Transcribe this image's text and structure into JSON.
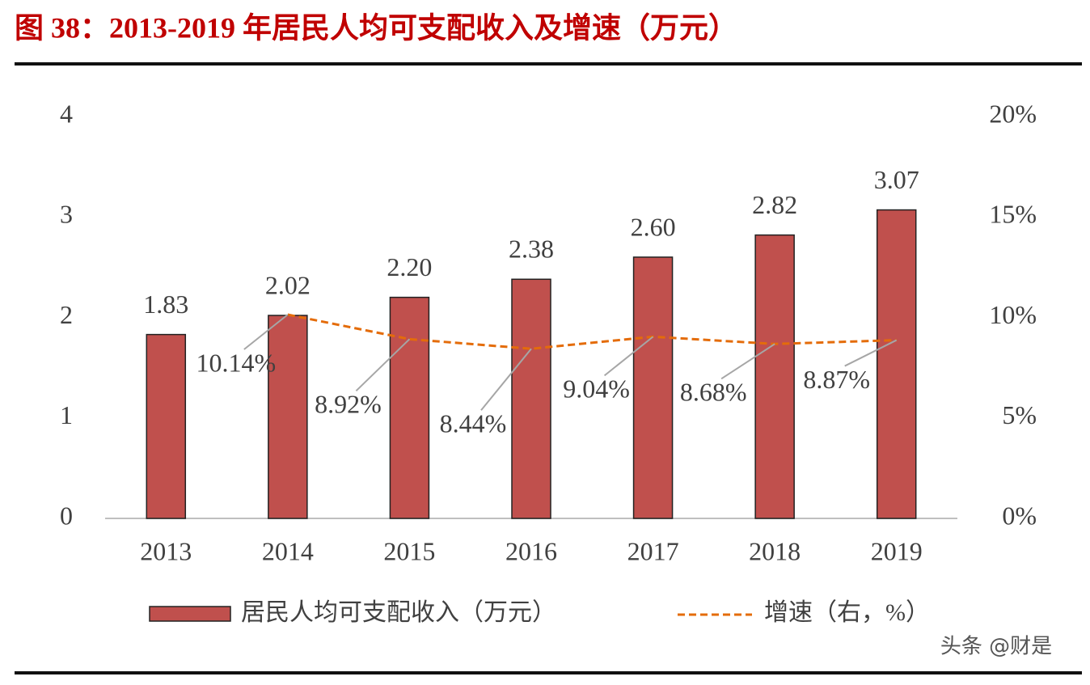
{
  "chart_data": {
    "type": "bar",
    "title": "图 38：2013-2019 年居民人均可支配收入及增速（万元）",
    "categories": [
      "2013",
      "2014",
      "2015",
      "2016",
      "2017",
      "2018",
      "2019"
    ],
    "series": [
      {
        "name": "居民人均可支配收入（万元）",
        "color": "#c0504d",
        "values": [
          1.83,
          2.02,
          2.2,
          2.38,
          2.6,
          2.82,
          3.07
        ],
        "value_labels": [
          "1.83",
          "2.02",
          "2.20",
          "2.38",
          "2.60",
          "2.82",
          "3.07"
        ]
      },
      {
        "name": "增速（右，%）",
        "color": "#e46c0a",
        "axis": "y2",
        "type": "line",
        "dashed": true,
        "values": [
          null,
          10.14,
          8.92,
          8.44,
          9.04,
          8.68,
          8.87
        ],
        "value_labels": [
          null,
          "10.14%",
          "8.92%",
          "8.44%",
          "9.04%",
          "8.68%",
          "8.87%"
        ]
      }
    ],
    "ylim": [
      0,
      4
    ],
    "yticks": [
      0,
      1,
      2,
      3,
      4
    ],
    "y2lim": [
      0,
      20
    ],
    "y2ticks": [
      {
        "value": 0,
        "label": "0%"
      },
      {
        "value": 5,
        "label": "5%"
      },
      {
        "value": 10,
        "label": "10%"
      },
      {
        "value": 15,
        "label": "15%"
      },
      {
        "value": 20,
        "label": "20%"
      }
    ],
    "watermark": "头条 @财是"
  }
}
